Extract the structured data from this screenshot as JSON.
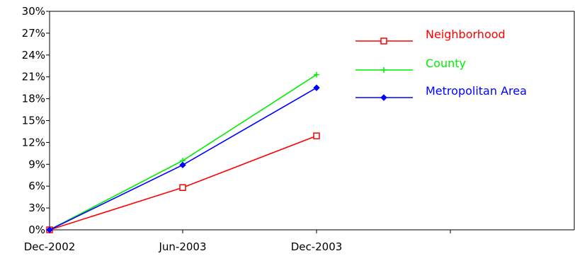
{
  "chart_data": {
    "type": "line",
    "x": [
      "Dec-2002",
      "Jun-2003",
      "Dec-2003"
    ],
    "ylim": [
      0,
      30
    ],
    "y_ticks": [
      "0%",
      "3%",
      "6%",
      "9%",
      "12%",
      "15%",
      "18%",
      "21%",
      "24%",
      "27%",
      "30%"
    ],
    "x_ticks": [
      "Dec-2002",
      "Jun-2003",
      "Dec-2003"
    ],
    "grid": false,
    "legend_position": "top-right",
    "series": [
      {
        "name": "Neighborhood",
        "color": "#ff0000",
        "marker": "square",
        "values": [
          0,
          5.8,
          12.9
        ]
      },
      {
        "name": "County",
        "color": "#00ee00",
        "marker": "plus",
        "values": [
          0,
          9.5,
          21.3
        ]
      },
      {
        "name": "Metropolitan Area",
        "color": "#0000ff",
        "marker": "diamond",
        "values": [
          0,
          8.9,
          19.5
        ]
      }
    ]
  }
}
